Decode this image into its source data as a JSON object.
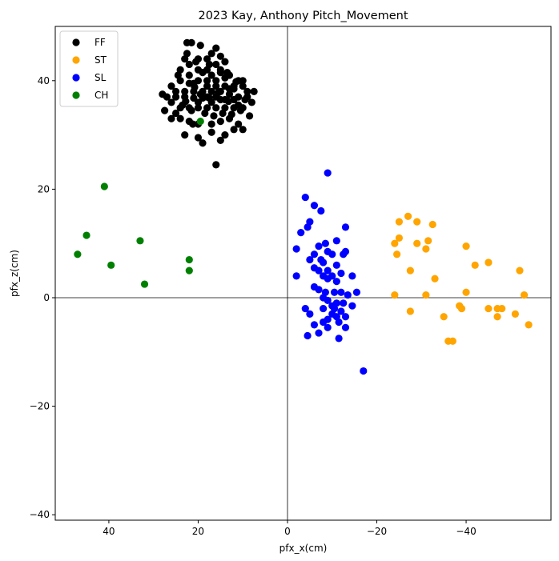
{
  "chart_data": {
    "type": "scatter",
    "title": "2023 Kay, Anthony  Pitch_Movement",
    "xlabel": "pfx_x(cm)",
    "ylabel": "pfx_z(cm)",
    "xlim": [
      52,
      -59
    ],
    "ylim": [
      -41,
      50
    ],
    "x_ticks": [
      40,
      20,
      0,
      -20,
      -40
    ],
    "y_ticks": [
      -40,
      -20,
      0,
      20,
      40
    ],
    "x_tick_labels": [
      "40",
      "20",
      "0",
      "−20",
      "−40"
    ],
    "y_tick_labels": [
      "−40",
      "−20",
      "0",
      "20",
      "40"
    ],
    "reference_lines": {
      "x": 0,
      "y": 0
    },
    "grid": false,
    "legend": {
      "placement": "top-left"
    },
    "series": [
      {
        "name": "FF",
        "color": "#000000",
        "points": [
          [
            22.5,
            47
          ],
          [
            21.5,
            47
          ],
          [
            17,
            45
          ],
          [
            16,
            46
          ],
          [
            19.5,
            46.5
          ],
          [
            23,
            44
          ],
          [
            20,
            44
          ],
          [
            18,
            44
          ],
          [
            15,
            44.5
          ],
          [
            16,
            43
          ],
          [
            24,
            42
          ],
          [
            22,
            43
          ],
          [
            20,
            42
          ],
          [
            18,
            42
          ],
          [
            15,
            42
          ],
          [
            13,
            41
          ],
          [
            11,
            40
          ],
          [
            10,
            40
          ],
          [
            10,
            39
          ],
          [
            9,
            38
          ],
          [
            12,
            39
          ],
          [
            14,
            39
          ],
          [
            16,
            40
          ],
          [
            18,
            40
          ],
          [
            20,
            40
          ],
          [
            22,
            41
          ],
          [
            24,
            40
          ],
          [
            26,
            39
          ],
          [
            27,
            37
          ],
          [
            28,
            37.5
          ],
          [
            26,
            36
          ],
          [
            25,
            37
          ],
          [
            23,
            38
          ],
          [
            21,
            38
          ],
          [
            19,
            38
          ],
          [
            17,
            38
          ],
          [
            15,
            38
          ],
          [
            13,
            37.5
          ],
          [
            11,
            37
          ],
          [
            9,
            37
          ],
          [
            8,
            36
          ],
          [
            7.5,
            38
          ],
          [
            10,
            35
          ],
          [
            12,
            35
          ],
          [
            14,
            35
          ],
          [
            16,
            35
          ],
          [
            18,
            35
          ],
          [
            20,
            35
          ],
          [
            22,
            35
          ],
          [
            24,
            35
          ],
          [
            25,
            34
          ],
          [
            26,
            33
          ],
          [
            24,
            33
          ],
          [
            22,
            32.5
          ],
          [
            20,
            32
          ],
          [
            17,
            32
          ],
          [
            15,
            32.5
          ],
          [
            13,
            33
          ],
          [
            11,
            32
          ],
          [
            10,
            31
          ],
          [
            12,
            31
          ],
          [
            14,
            30
          ],
          [
            17,
            30.5
          ],
          [
            20,
            29.5
          ],
          [
            23,
            30
          ],
          [
            19,
            28.5
          ],
          [
            15,
            29
          ],
          [
            16,
            24.5
          ],
          [
            20,
            36
          ],
          [
            18,
            37
          ],
          [
            16,
            37
          ],
          [
            14,
            36.5
          ],
          [
            12,
            36.5
          ],
          [
            21,
            36.8
          ],
          [
            19,
            36.8
          ],
          [
            17,
            36
          ],
          [
            15,
            36.5
          ],
          [
            13,
            38.5
          ],
          [
            21,
            39.5
          ],
          [
            18,
            39
          ],
          [
            16,
            39
          ],
          [
            14,
            40.5
          ],
          [
            12,
            38.5
          ],
          [
            23,
            37
          ],
          [
            22,
            39.5
          ],
          [
            19,
            41.5
          ],
          [
            17,
            41
          ],
          [
            15,
            41.5
          ],
          [
            14,
            43.5
          ],
          [
            20.5,
            43.5
          ],
          [
            22.5,
            45
          ],
          [
            17.5,
            43
          ],
          [
            25,
            38
          ],
          [
            23.5,
            35.5
          ],
          [
            21.5,
            34.5
          ],
          [
            18.5,
            34
          ],
          [
            16.5,
            33.5
          ],
          [
            14.5,
            34
          ],
          [
            12.5,
            33.8
          ],
          [
            10.5,
            34.5
          ],
          [
            24.5,
            41
          ],
          [
            13.5,
            41.5
          ],
          [
            11.5,
            39.8
          ],
          [
            9.5,
            36.5
          ],
          [
            19.5,
            37.5
          ],
          [
            17.5,
            36.8
          ],
          [
            15.5,
            37.8
          ],
          [
            13.2,
            36.2
          ],
          [
            20.8,
            38.8
          ],
          [
            22.8,
            36.2
          ],
          [
            27.5,
            34.5
          ],
          [
            11,
            35.5
          ],
          [
            8.5,
            33.5
          ],
          [
            21.2,
            32
          ]
        ]
      },
      {
        "name": "ST",
        "color": "#FFA500",
        "points": [
          [
            -25,
            14
          ],
          [
            -27,
            15
          ],
          [
            -29,
            14
          ],
          [
            -32.5,
            13.5
          ],
          [
            -25,
            11
          ],
          [
            -24,
            10
          ],
          [
            -29,
            10
          ],
          [
            -31.5,
            10.5
          ],
          [
            -24.5,
            8
          ],
          [
            -31,
            9
          ],
          [
            -40,
            9.5
          ],
          [
            -42,
            6
          ],
          [
            -45,
            6.5
          ],
          [
            -52,
            5
          ],
          [
            -27.5,
            5
          ],
          [
            -33,
            3.5
          ],
          [
            -24,
            0.5
          ],
          [
            -31,
            0.5
          ],
          [
            -40,
            1
          ],
          [
            -53,
            0.5
          ],
          [
            -27.5,
            -2.5
          ],
          [
            -38.5,
            -1.5
          ],
          [
            -39,
            -2
          ],
          [
            -45,
            -2
          ],
          [
            -47,
            -2
          ],
          [
            -48,
            -2
          ],
          [
            -51,
            -3
          ],
          [
            -54,
            -5
          ],
          [
            -35,
            -3.5
          ],
          [
            -36,
            -8
          ],
          [
            -37,
            -8
          ],
          [
            -47,
            -3.5
          ]
        ]
      },
      {
        "name": "SL",
        "color": "#0000FF",
        "points": [
          [
            -9,
            23
          ],
          [
            -4,
            18.5
          ],
          [
            -6,
            17
          ],
          [
            -7.5,
            16
          ],
          [
            -5,
            14
          ],
          [
            -4.5,
            13
          ],
          [
            -3,
            12
          ],
          [
            -13,
            13
          ],
          [
            -11,
            10.5
          ],
          [
            -8.5,
            10
          ],
          [
            -7,
            9.5
          ],
          [
            -2,
            9
          ],
          [
            -6,
            8
          ],
          [
            -9,
            8.5
          ],
          [
            -13,
            8.5
          ],
          [
            -10,
            8
          ],
          [
            -12.5,
            8
          ],
          [
            -5,
            7
          ],
          [
            -7.5,
            7
          ],
          [
            -8,
            6.5
          ],
          [
            -11,
            6
          ],
          [
            -6,
            5.5
          ],
          [
            -9,
            5
          ],
          [
            -7,
            5
          ],
          [
            -12,
            4.5
          ],
          [
            -10,
            4
          ],
          [
            -2,
            4
          ],
          [
            -8,
            4
          ],
          [
            -14.5,
            4
          ],
          [
            -9,
            3.5
          ],
          [
            -11,
            3
          ],
          [
            -6,
            2
          ],
          [
            -7,
            1.5
          ],
          [
            -8.5,
            1
          ],
          [
            -10.5,
            1
          ],
          [
            -12,
            1
          ],
          [
            -13.5,
            0.5
          ],
          [
            -15.5,
            1
          ],
          [
            -8,
            0
          ],
          [
            -9,
            -0.5
          ],
          [
            -11,
            -1
          ],
          [
            -12.5,
            -1
          ],
          [
            -14.5,
            -1.5
          ],
          [
            -10,
            -1.5
          ],
          [
            -8,
            -2
          ],
          [
            -4,
            -2
          ],
          [
            -5,
            -3
          ],
          [
            -10.5,
            -2
          ],
          [
            -12,
            -2.5
          ],
          [
            -11,
            -3.5
          ],
          [
            -13,
            -3.5
          ],
          [
            -9,
            -4
          ],
          [
            -8,
            -4.5
          ],
          [
            -11.5,
            -4.5
          ],
          [
            -6,
            -5
          ],
          [
            -9,
            -5.5
          ],
          [
            -13,
            -5.5
          ],
          [
            -4.5,
            -7
          ],
          [
            -7,
            -6.5
          ],
          [
            -11.5,
            -7.5
          ],
          [
            -17,
            -13.5
          ],
          [
            -10,
            -3
          ]
        ]
      },
      {
        "name": "CH",
        "color": "#008000",
        "points": [
          [
            19.5,
            32.5
          ],
          [
            41,
            20.5
          ],
          [
            45,
            11.5
          ],
          [
            33,
            10.5
          ],
          [
            47,
            8
          ],
          [
            39.5,
            6
          ],
          [
            22,
            7
          ],
          [
            22,
            5
          ],
          [
            32,
            2.5
          ]
        ]
      }
    ]
  }
}
